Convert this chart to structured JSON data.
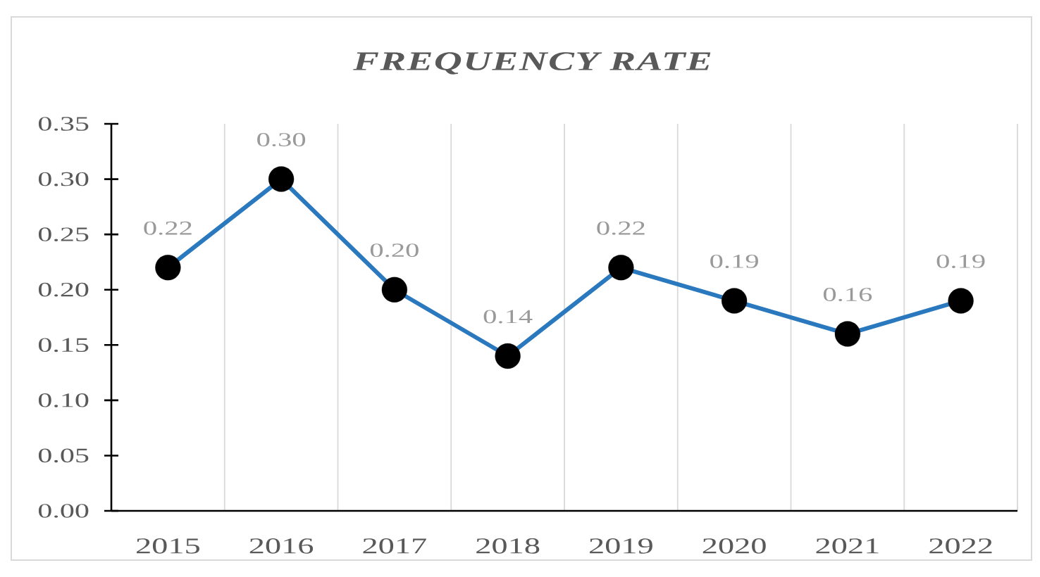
{
  "chart_data": {
    "type": "line",
    "title": "FREQUENCY RATE",
    "categories": [
      "2015",
      "2016",
      "2017",
      "2018",
      "2019",
      "2020",
      "2021",
      "2022"
    ],
    "values": [
      0.22,
      0.3,
      0.2,
      0.14,
      0.22,
      0.19,
      0.16,
      0.19
    ],
    "value_labels": [
      "0.22",
      "0.30",
      "0.20",
      "0.14",
      "0.22",
      "0.19",
      "0.16",
      "0.19"
    ],
    "color": "#2a78bd",
    "marker": "circle",
    "line_style": "solid",
    "grid": "x",
    "ylim": [
      0,
      0.35
    ],
    "yticks": [
      {
        "value": 0,
        "label": "0.00"
      },
      {
        "value": 0.05,
        "label": "0.05"
      },
      {
        "value": 0.1,
        "label": "0.10"
      },
      {
        "value": 0.15,
        "label": "0.15"
      },
      {
        "value": 0.2,
        "label": "0.20"
      },
      {
        "value": 0.25,
        "label": "0.25"
      },
      {
        "value": 0.3,
        "label": "0.30"
      },
      {
        "value": 0.35,
        "label": "0.35"
      }
    ]
  }
}
